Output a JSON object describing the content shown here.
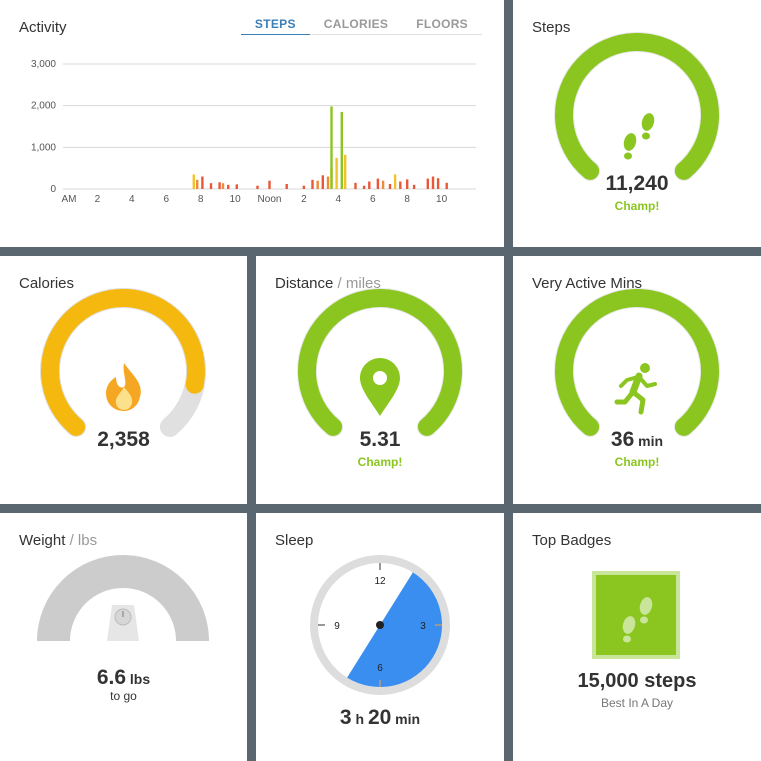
{
  "activity": {
    "title": "Activity",
    "tabs": [
      "STEPS",
      "CALORIES",
      "FLOORS"
    ],
    "active_tab": 0
  },
  "chart_data": {
    "type": "bar",
    "title": "Activity",
    "ylim": [
      0,
      3000
    ],
    "y_ticks": [
      "0",
      "1,000",
      "2,000",
      "3,000"
    ],
    "y_tick_values": [
      0,
      1000,
      2000,
      3000
    ],
    "x_ticks": [
      "AM",
      "2",
      "4",
      "6",
      "8",
      "10",
      "Noon",
      "2",
      "4",
      "6",
      "8",
      "10"
    ],
    "x_tick_hours": [
      0,
      2,
      4,
      6,
      8,
      10,
      12,
      14,
      16,
      18,
      20,
      22
    ],
    "x_range_hours": [
      0,
      24
    ],
    "series": [
      {
        "hours": [
          7.6,
          7.8,
          8.1,
          8.6,
          9.1,
          9.3,
          9.6,
          10.1,
          11.3,
          12.0,
          13.0,
          14.0,
          14.5,
          14.8,
          15.1,
          15.4,
          15.6,
          15.9,
          16.2,
          16.4,
          17.0,
          17.5,
          17.8,
          18.3,
          18.6,
          19.0,
          19.3,
          19.6,
          20.0,
          20.4,
          21.2,
          21.5,
          21.8,
          22.3
        ],
        "values": [
          350,
          220,
          300,
          140,
          160,
          140,
          100,
          110,
          80,
          200,
          120,
          80,
          220,
          200,
          330,
          300,
          500,
          750,
          1850,
          820,
          150,
          80,
          180,
          250,
          200,
          120,
          350,
          180,
          230,
          100,
          250,
          300,
          260,
          150
        ],
        "colors": [
          "#f2c12e",
          "#f08a3a",
          "#e8573a",
          "#e8573a",
          "#e8573a",
          "#f08a3a",
          "#e8573a",
          "#e8573a",
          "#e8573a",
          "#e8573a",
          "#e8573a",
          "#e8573a",
          "#e8573a",
          "#f08a3a",
          "#e8573a",
          "#f08a3a",
          "#f2c12e",
          "#f2c12e",
          "#8bc620",
          "#f2c12e",
          "#e8573a",
          "#e8573a",
          "#e8573a",
          "#e8573a",
          "#f08a3a",
          "#e8573a",
          "#f2c12e",
          "#e8573a",
          "#e8573a",
          "#e8573a",
          "#e8573a",
          "#e8573a",
          "#e8573a",
          "#e8573a"
        ]
      }
    ],
    "highlight": {
      "hours": 15.9,
      "value": 1980,
      "color": "#8bc620"
    }
  },
  "steps": {
    "title": "Steps",
    "value": "11,240",
    "status": "Champ!",
    "fraction": 1.0,
    "color": "#8bc620",
    "icon": "footprints-icon"
  },
  "calories": {
    "title": "Calories",
    "value": "2,358",
    "fraction": 0.86,
    "color": "#f5b80f",
    "icon": "flame-icon"
  },
  "distance": {
    "title": "Distance",
    "unit": " / miles",
    "value": "5.31",
    "status": "Champ!",
    "fraction": 1.0,
    "color": "#8bc620",
    "icon": "map-pin-icon"
  },
  "active": {
    "title": "Very Active Mins",
    "value": "36",
    "suffix": " min",
    "status": "Champ!",
    "fraction": 1.0,
    "color": "#8bc620",
    "icon": "runner-icon"
  },
  "weight": {
    "title": "Weight",
    "unit": " / lbs",
    "value": "6.6",
    "suffix": " lbs",
    "caption": "to go",
    "color": "#cccccc",
    "icon": "scale-icon"
  },
  "sleep": {
    "title": "Sleep",
    "hours": "3",
    "h_label": " h ",
    "minutes": "20",
    "min_label": " min",
    "dial_labels": [
      "12",
      "3",
      "6",
      "9"
    ],
    "color": "#3a8ef0"
  },
  "badges": {
    "title": "Top Badges",
    "name": "15,000 steps",
    "caption": "Best In A Day",
    "color": "#8bc620",
    "icon": "footprints-icon"
  }
}
